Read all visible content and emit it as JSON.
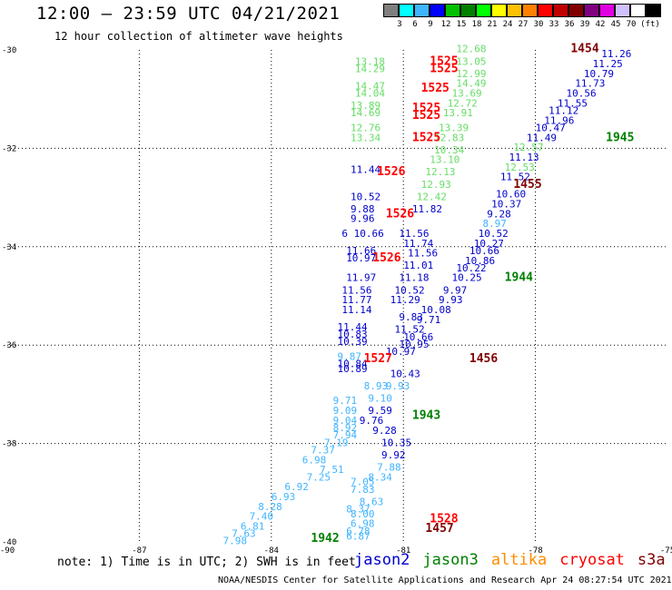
{
  "header": {
    "title": "12:00 – 23:59 UTC 04/21/2021",
    "subtitle": "12 hour collection of altimeter wave heights"
  },
  "colorbar": {
    "unit": "(ft)",
    "colors": [
      "#7f7f7f",
      "#00ffff",
      "#3fb4ff",
      "#0000ff",
      "#00c000",
      "#008000",
      "#00ff00",
      "#ffff00",
      "#ffc000",
      "#ff8000",
      "#ff0000",
      "#c00000",
      "#800000",
      "#800080",
      "#e000e0",
      "#d0c0ff",
      "#ffffff",
      "#000000"
    ],
    "ticks": [
      "3",
      "6",
      "9",
      "12",
      "15",
      "18",
      "21",
      "24",
      "27",
      "30",
      "33",
      "36",
      "39",
      "42",
      "45",
      "70"
    ]
  },
  "axes": {
    "x_ticks": [
      "-90",
      "-87",
      "-84",
      "-81",
      "-78",
      "-75"
    ],
    "y_ticks": [
      "-30",
      "-32",
      "-34",
      "-36",
      "-38",
      "-40"
    ]
  },
  "footer": {
    "note": "note: 1) Time is in UTC; 2) SWH is in feet",
    "credit": "NOAA/NESDIS Center for Satellite Applications and Research   Apr 24 08:27:54 UTC 2021",
    "satellites": [
      {
        "name": "jason2",
        "color": "#0000cc"
      },
      {
        "name": "jason3",
        "color": "#008000"
      },
      {
        "name": "altika",
        "color": "#ff8c00"
      },
      {
        "name": "cryosat",
        "color": "#ff0000"
      },
      {
        "name": "s3a",
        "color": "#800000"
      }
    ]
  },
  "map_data": {
    "lon_range": [
      -90,
      -75
    ],
    "lat_range": [
      -40,
      -30
    ],
    "times": [
      {
        "text": "1454",
        "lon": -77.2,
        "lat": -30.05,
        "color": "#800000"
      },
      {
        "text": "1525",
        "lon": -80.4,
        "lat": -30.3,
        "color": "#ff0000"
      },
      {
        "text": "1525",
        "lon": -80.4,
        "lat": -30.45,
        "color": "#ff0000"
      },
      {
        "text": "1525",
        "lon": -80.6,
        "lat": -30.85,
        "color": "#ff0000"
      },
      {
        "text": "1525",
        "lon": -80.8,
        "lat": -31.25,
        "color": "#ff0000"
      },
      {
        "text": "1525",
        "lon": -80.8,
        "lat": -31.4,
        "color": "#ff0000"
      },
      {
        "text": "1525",
        "lon": -80.8,
        "lat": -31.85,
        "color": "#ff0000"
      },
      {
        "text": "1945",
        "lon": -76.4,
        "lat": -31.85,
        "color": "#008000"
      },
      {
        "text": "1526",
        "lon": -81.6,
        "lat": -32.55,
        "color": "#ff0000"
      },
      {
        "text": "1455",
        "lon": -78.5,
        "lat": -32.8,
        "color": "#800000"
      },
      {
        "text": "1526",
        "lon": -81.4,
        "lat": -33.4,
        "color": "#ff0000"
      },
      {
        "text": "1526",
        "lon": -81.7,
        "lat": -34.3,
        "color": "#ff0000"
      },
      {
        "text": "1944",
        "lon": -78.7,
        "lat": -34.7,
        "color": "#008000"
      },
      {
        "text": "1527",
        "lon": -81.9,
        "lat": -36.35,
        "color": "#ff0000"
      },
      {
        "text": "1456",
        "lon": -79.5,
        "lat": -36.35,
        "color": "#800000"
      },
      {
        "text": "1943",
        "lon": -80.8,
        "lat": -37.5,
        "color": "#008000"
      },
      {
        "text": "1528",
        "lon": -80.4,
        "lat": -39.6,
        "color": "#ff0000"
      },
      {
        "text": "1457",
        "lon": -80.5,
        "lat": -39.8,
        "color": "#800000"
      },
      {
        "text": "1942",
        "lon": -83.1,
        "lat": -40.0,
        "color": "#008000"
      }
    ],
    "values": [
      {
        "text": "12.68",
        "lon": -79.8,
        "lat": -30.05,
        "color": "#66dd66"
      },
      {
        "text": "11.26",
        "lon": -76.5,
        "lat": -30.15,
        "color": "#0000cc"
      },
      {
        "text": "13.18",
        "lon": -82.1,
        "lat": -30.3,
        "color": "#66dd66"
      },
      {
        "text": "13.05",
        "lon": -79.8,
        "lat": -30.3,
        "color": "#66dd66"
      },
      {
        "text": "11.25",
        "lon": -76.7,
        "lat": -30.35,
        "color": "#0000cc"
      },
      {
        "text": "14.29",
        "lon": -82.1,
        "lat": -30.45,
        "color": "#66dd66"
      },
      {
        "text": "12.99",
        "lon": -79.8,
        "lat": -30.55,
        "color": "#66dd66"
      },
      {
        "text": "10.79",
        "lon": -76.9,
        "lat": -30.55,
        "color": "#0000cc"
      },
      {
        "text": "14.47",
        "lon": -82.1,
        "lat": -30.8,
        "color": "#66dd66"
      },
      {
        "text": "14.49",
        "lon": -79.8,
        "lat": -30.75,
        "color": "#66dd66"
      },
      {
        "text": "11.73",
        "lon": -77.1,
        "lat": -30.75,
        "color": "#0000cc"
      },
      {
        "text": "14.04",
        "lon": -82.1,
        "lat": -30.95,
        "color": "#66dd66"
      },
      {
        "text": "13.69",
        "lon": -79.9,
        "lat": -30.95,
        "color": "#66dd66"
      },
      {
        "text": "10.56",
        "lon": -77.3,
        "lat": -30.95,
        "color": "#0000cc"
      },
      {
        "text": "13.89",
        "lon": -82.2,
        "lat": -31.2,
        "color": "#66dd66"
      },
      {
        "text": "12.72",
        "lon": -80.0,
        "lat": -31.15,
        "color": "#66dd66"
      },
      {
        "text": "11.55",
        "lon": -77.5,
        "lat": -31.15,
        "color": "#0000cc"
      },
      {
        "text": "14.69",
        "lon": -82.2,
        "lat": -31.35,
        "color": "#66dd66"
      },
      {
        "text": "13.91",
        "lon": -80.1,
        "lat": -31.35,
        "color": "#66dd66"
      },
      {
        "text": "11.12",
        "lon": -77.7,
        "lat": -31.3,
        "color": "#0000cc"
      },
      {
        "text": "11.96",
        "lon": -77.8,
        "lat": -31.5,
        "color": "#0000cc"
      },
      {
        "text": "12.76",
        "lon": -82.2,
        "lat": -31.65,
        "color": "#66dd66"
      },
      {
        "text": "13.39",
        "lon": -80.2,
        "lat": -31.65,
        "color": "#66dd66"
      },
      {
        "text": "10.47",
        "lon": -78.0,
        "lat": -31.65,
        "color": "#0000cc"
      },
      {
        "text": "13.34",
        "lon": -82.2,
        "lat": -31.85,
        "color": "#66dd66"
      },
      {
        "text": "12.83",
        "lon": -80.3,
        "lat": -31.85,
        "color": "#66dd66"
      },
      {
        "text": "11.49",
        "lon": -78.2,
        "lat": -31.85,
        "color": "#0000cc"
      },
      {
        "text": "10.34",
        "lon": -80.3,
        "lat": -32.1,
        "color": "#66dd66"
      },
      {
        "text": "12.57",
        "lon": -78.5,
        "lat": -32.05,
        "color": "#66dd66"
      },
      {
        "text": "13.10",
        "lon": -80.4,
        "lat": -32.3,
        "color": "#66dd66"
      },
      {
        "text": "11.13",
        "lon": -78.6,
        "lat": -32.25,
        "color": "#0000cc"
      },
      {
        "text": "11.44",
        "lon": -82.2,
        "lat": -32.5,
        "color": "#0000cc"
      },
      {
        "text": "12.13",
        "lon": -80.5,
        "lat": -32.55,
        "color": "#66dd66"
      },
      {
        "text": "12.53",
        "lon": -78.7,
        "lat": -32.45,
        "color": "#66dd66"
      },
      {
        "text": "11.52",
        "lon": -78.8,
        "lat": -32.65,
        "color": "#0000cc"
      },
      {
        "text": "12.93",
        "lon": -80.6,
        "lat": -32.8,
        "color": "#66dd66"
      },
      {
        "text": "10.60",
        "lon": -78.9,
        "lat": -33.0,
        "color": "#0000cc"
      },
      {
        "text": "10.52",
        "lon": -82.2,
        "lat": -33.05,
        "color": "#0000cc"
      },
      {
        "text": "12.42",
        "lon": -80.7,
        "lat": -33.05,
        "color": "#66dd66"
      },
      {
        "text": "10.37",
        "lon": -79.0,
        "lat": -33.2,
        "color": "#0000cc"
      },
      {
        "text": "9.88",
        "lon": -82.2,
        "lat": -33.3,
        "color": "#0000cc"
      },
      {
        "text": "11.82",
        "lon": -80.8,
        "lat": -33.3,
        "color": "#0000cc"
      },
      {
        "text": "9.28",
        "lon": -79.1,
        "lat": -33.4,
        "color": "#0000cc"
      },
      {
        "text": "9.96",
        "lon": -82.2,
        "lat": -33.5,
        "color": "#0000cc"
      },
      {
        "text": "8.97",
        "lon": -79.2,
        "lat": -33.6,
        "color": "#3fb4ff"
      },
      {
        "text": "6 10.66",
        "lon": -82.4,
        "lat": -33.8,
        "color": "#0000cc"
      },
      {
        "text": "11.56",
        "lon": -81.1,
        "lat": -33.8,
        "color": "#0000cc"
      },
      {
        "text": "10.52",
        "lon": -79.3,
        "lat": -33.8,
        "color": "#0000cc"
      },
      {
        "text": "11.74",
        "lon": -81.0,
        "lat": -34.0,
        "color": "#0000cc"
      },
      {
        "text": "10.27",
        "lon": -79.4,
        "lat": -34.0,
        "color": "#0000cc"
      },
      {
        "text": "11.66",
        "lon": -82.3,
        "lat": -34.15,
        "color": "#0000cc"
      },
      {
        "text": "10.66",
        "lon": -79.5,
        "lat": -34.15,
        "color": "#0000cc"
      },
      {
        "text": "10.97",
        "lon": -82.3,
        "lat": -34.3,
        "color": "#0000cc"
      },
      {
        "text": "11.56",
        "lon": -80.9,
        "lat": -34.2,
        "color": "#0000cc"
      },
      {
        "text": "10.86",
        "lon": -79.6,
        "lat": -34.35,
        "color": "#0000cc"
      },
      {
        "text": "11.01",
        "lon": -81.0,
        "lat": -34.45,
        "color": "#0000cc"
      },
      {
        "text": "10.22",
        "lon": -79.8,
        "lat": -34.5,
        "color": "#0000cc"
      },
      {
        "text": "11.97",
        "lon": -82.3,
        "lat": -34.7,
        "color": "#0000cc"
      },
      {
        "text": "11.18",
        "lon": -81.1,
        "lat": -34.7,
        "color": "#0000cc"
      },
      {
        "text": "10.25",
        "lon": -79.9,
        "lat": -34.7,
        "color": "#0000cc"
      },
      {
        "text": "11.56",
        "lon": -82.4,
        "lat": -34.95,
        "color": "#0000cc"
      },
      {
        "text": "10.52",
        "lon": -81.2,
        "lat": -34.95,
        "color": "#0000cc"
      },
      {
        "text": "9.97",
        "lon": -80.1,
        "lat": -34.95,
        "color": "#0000cc"
      },
      {
        "text": "11.77",
        "lon": -82.4,
        "lat": -35.15,
        "color": "#0000cc"
      },
      {
        "text": "11.29",
        "lon": -81.3,
        "lat": -35.15,
        "color": "#0000cc"
      },
      {
        "text": "9.93",
        "lon": -80.2,
        "lat": -35.15,
        "color": "#0000cc"
      },
      {
        "text": "11.14",
        "lon": -82.4,
        "lat": -35.35,
        "color": "#0000cc"
      },
      {
        "text": "10.08",
        "lon": -80.6,
        "lat": -35.35,
        "color": "#0000cc"
      },
      {
        "text": "9.83",
        "lon": -81.1,
        "lat": -35.5,
        "color": "#0000cc"
      },
      {
        "text": "9.71",
        "lon": -80.7,
        "lat": -35.55,
        "color": "#0000cc"
      },
      {
        "text": "11.44",
        "lon": -82.5,
        "lat": -35.7,
        "color": "#0000cc"
      },
      {
        "text": "11.52",
        "lon": -81.2,
        "lat": -35.75,
        "color": "#0000cc"
      },
      {
        "text": "10.83",
        "lon": -82.5,
        "lat": -35.85,
        "color": "#0000cc"
      },
      {
        "text": "10.66",
        "lon": -81.0,
        "lat": -35.9,
        "color": "#0000cc"
      },
      {
        "text": "10.39",
        "lon": -82.5,
        "lat": -36.0,
        "color": "#0000cc"
      },
      {
        "text": "10.95",
        "lon": -81.1,
        "lat": -36.05,
        "color": "#0000cc"
      },
      {
        "text": "10.97",
        "lon": -81.4,
        "lat": -36.2,
        "color": "#0000cc"
      },
      {
        "text": "9.87",
        "lon": -82.5,
        "lat": -36.3,
        "color": "#3fb4ff"
      },
      {
        "text": "10.84",
        "lon": -82.5,
        "lat": -36.45,
        "color": "#0000cc"
      },
      {
        "text": "10.89",
        "lon": -82.5,
        "lat": -36.55,
        "color": "#0000cc"
      },
      {
        "text": "10.43",
        "lon": -81.3,
        "lat": -36.65,
        "color": "#0000cc"
      },
      {
        "text": "9.93",
        "lon": -81.4,
        "lat": -36.9,
        "color": "#3fb4ff"
      },
      {
        "text": "8.93",
        "lon": -81.9,
        "lat": -36.9,
        "color": "#3fb4ff"
      },
      {
        "text": "9.10",
        "lon": -81.8,
        "lat": -37.15,
        "color": "#3fb4ff"
      },
      {
        "text": "9.71",
        "lon": -82.6,
        "lat": -37.2,
        "color": "#3fb4ff"
      },
      {
        "text": "9.09",
        "lon": -82.6,
        "lat": -37.4,
        "color": "#3fb4ff"
      },
      {
        "text": "9.59",
        "lon": -81.8,
        "lat": -37.4,
        "color": "#0000cc"
      },
      {
        "text": "9.04",
        "lon": -82.6,
        "lat": -37.6,
        "color": "#3fb4ff"
      },
      {
        "text": "9.76",
        "lon": -82.0,
        "lat": -37.6,
        "color": "#0000cc"
      },
      {
        "text": "8.92",
        "lon": -82.6,
        "lat": -37.75,
        "color": "#3fb4ff"
      },
      {
        "text": "9.28",
        "lon": -81.7,
        "lat": -37.8,
        "color": "#0000cc"
      },
      {
        "text": "7.94",
        "lon": -82.6,
        "lat": -37.9,
        "color": "#3fb4ff"
      },
      {
        "text": "7.19",
        "lon": -82.8,
        "lat": -38.05,
        "color": "#3fb4ff"
      },
      {
        "text": "10.35",
        "lon": -81.5,
        "lat": -38.05,
        "color": "#0000cc"
      },
      {
        "text": "7.37",
        "lon": -83.1,
        "lat": -38.2,
        "color": "#3fb4ff"
      },
      {
        "text": "9.92",
        "lon": -81.5,
        "lat": -38.3,
        "color": "#0000cc"
      },
      {
        "text": "6.98",
        "lon": -83.3,
        "lat": -38.4,
        "color": "#3fb4ff"
      },
      {
        "text": "7.51",
        "lon": -82.9,
        "lat": -38.6,
        "color": "#3fb4ff"
      },
      {
        "text": "7.88",
        "lon": -81.6,
        "lat": -38.55,
        "color": "#3fb4ff"
      },
      {
        "text": "7.25",
        "lon": -83.2,
        "lat": -38.75,
        "color": "#3fb4ff"
      },
      {
        "text": "8.34",
        "lon": -81.8,
        "lat": -38.75,
        "color": "#3fb4ff"
      },
      {
        "text": "7.05",
        "lon": -82.2,
        "lat": -38.85,
        "color": "#3fb4ff"
      },
      {
        "text": "6.92",
        "lon": -83.7,
        "lat": -38.95,
        "color": "#3fb4ff"
      },
      {
        "text": "7.83",
        "lon": -82.2,
        "lat": -39.0,
        "color": "#3fb4ff"
      },
      {
        "text": "6.93",
        "lon": -84.0,
        "lat": -39.15,
        "color": "#3fb4ff"
      },
      {
        "text": "8.63",
        "lon": -82.0,
        "lat": -39.25,
        "color": "#3fb4ff"
      },
      {
        "text": "8.28",
        "lon": -84.3,
        "lat": -39.35,
        "color": "#3fb4ff"
      },
      {
        "text": "8.37",
        "lon": -82.3,
        "lat": -39.4,
        "color": "#3fb4ff"
      },
      {
        "text": "7.40",
        "lon": -84.5,
        "lat": -39.55,
        "color": "#3fb4ff"
      },
      {
        "text": "8.00",
        "lon": -82.2,
        "lat": -39.5,
        "color": "#3fb4ff"
      },
      {
        "text": "6.81",
        "lon": -84.7,
        "lat": -39.75,
        "color": "#3fb4ff"
      },
      {
        "text": "6.98",
        "lon": -82.2,
        "lat": -39.7,
        "color": "#3fb4ff"
      },
      {
        "text": "7.63",
        "lon": -84.9,
        "lat": -39.9,
        "color": "#3fb4ff"
      },
      {
        "text": "6.78",
        "lon": -82.3,
        "lat": -39.85,
        "color": "#3fb4ff"
      },
      {
        "text": "7.98",
        "lon": -85.1,
        "lat": -40.05,
        "color": "#3fb4ff"
      },
      {
        "text": "6.87",
        "lon": -82.3,
        "lat": -39.95,
        "color": "#3fb4ff"
      }
    ]
  }
}
